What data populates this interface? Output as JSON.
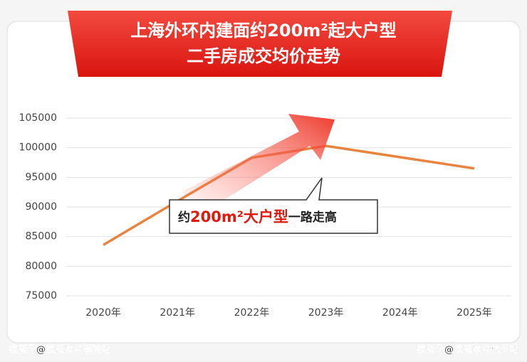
{
  "chart_data": {
    "type": "line",
    "title": [
      "上海外环内建面约200m²起大户型",
      "二手房成交均价走势"
    ],
    "categories": [
      "2020年",
      "2021年",
      "2022年",
      "2023年",
      "2024年",
      "2025年"
    ],
    "series": [
      {
        "color": "#e8843f",
        "values": [
          83600,
          91000,
          98300,
          100300,
          98400,
          96500
        ]
      }
    ],
    "ylim": [
      75000,
      105000
    ],
    "yticks": [
      75000,
      80000,
      85000,
      90000,
      95000,
      100000,
      105000
    ],
    "grid": true,
    "annotation": [
      "约",
      "200m²大户型",
      "一路走高"
    ],
    "watermarks": [
      "搜狐号@搜狐焦点铜陵站",
      "搜狐号@搜狐焦点杭州站"
    ]
  }
}
